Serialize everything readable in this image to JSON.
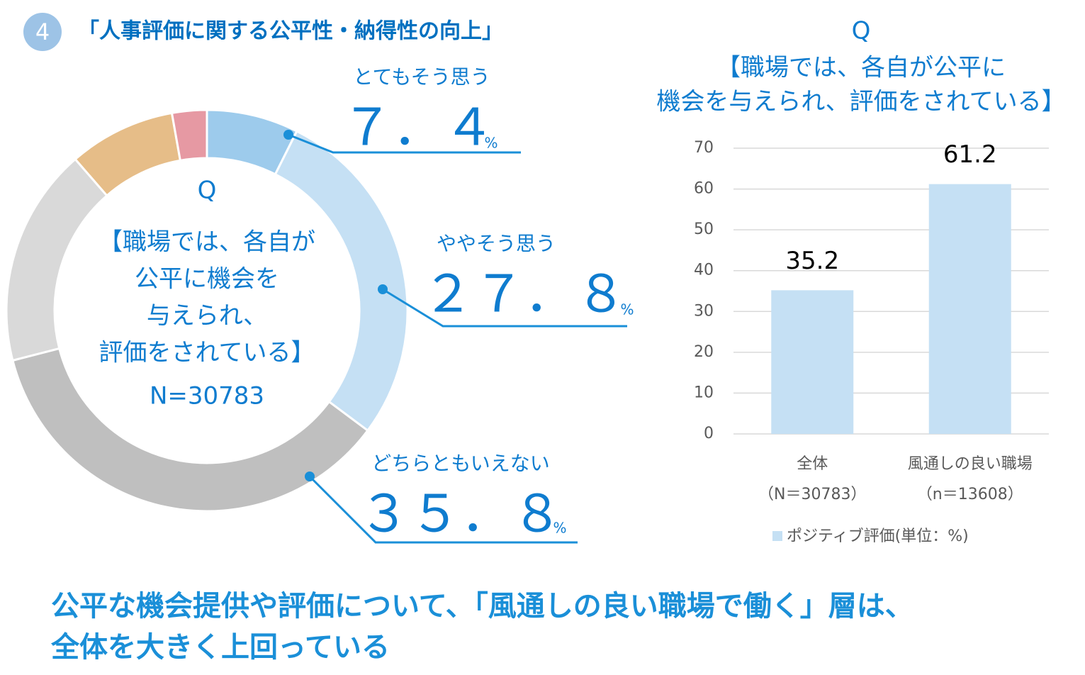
{
  "header": {
    "number": "4",
    "title": "「人事評価に関する公平性・納得性の向上」"
  },
  "chart_data": [
    {
      "type": "donut",
      "center_text": [
        "Q",
        "【職場では、各自が",
        "公平に機会を",
        "与えられ、",
        "評価をされている】",
        "N=30783"
      ],
      "categories": [
        "とてもそう思う",
        "ややそう思う",
        "どちらともいえない",
        null,
        null,
        null
      ],
      "values": [
        7.4,
        27.8,
        35.8,
        17.6,
        8.6,
        2.8
      ],
      "value_labels": [
        "７．４",
        "２７．８",
        "３５．８",
        null,
        null,
        null
      ],
      "unit": "%",
      "colors": [
        "#9dcbec",
        "#c5e0f4",
        "#bfbfbf",
        "#d9d9d9",
        "#e6bd88",
        "#e699a3"
      ]
    },
    {
      "type": "bar",
      "title": [
        "Q",
        "【職場では、各自が公平に",
        "機会を与えられ、評価をされている】"
      ],
      "categories": [
        [
          "全体",
          "（N＝30783）"
        ],
        [
          "風通しの良い職場",
          "（n＝13608）"
        ]
      ],
      "series": [
        {
          "name": "ポジティブ評価(単位：%)",
          "color": "#c5e0f4",
          "values": [
            35.2,
            61.2
          ]
        }
      ],
      "ylim": [
        0,
        70
      ],
      "yticks": [
        0,
        10,
        20,
        30,
        40,
        50,
        60,
        70
      ],
      "grid": true,
      "legend": "bottom"
    }
  ],
  "conclusion": [
    "公平な機会提供や評価について、「風通しの良い職場で働く」層は、",
    "全体を大きく上回っている"
  ]
}
